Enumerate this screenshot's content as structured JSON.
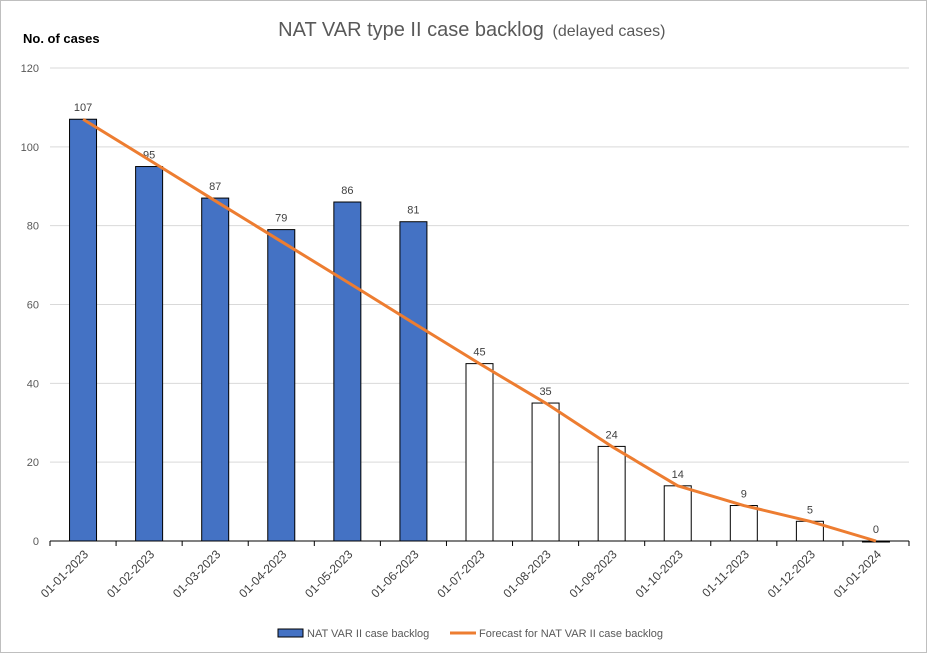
{
  "chart_data": {
    "type": "bar",
    "title": "NAT VAR type II case backlog",
    "subtitle": "(delayed cases)",
    "ylabel": "No. of cases",
    "xlabel": "",
    "ylim": [
      0,
      120
    ],
    "yticks": [
      0,
      20,
      40,
      60,
      80,
      100,
      120
    ],
    "grid": true,
    "legend_position": "bottom",
    "categories": [
      "01-01-2023",
      "01-02-2023",
      "01-03-2023",
      "01-04-2023",
      "01-05-2023",
      "01-06-2023",
      "01-07-2023",
      "01-08-2023",
      "01-09-2023",
      "01-10-2023",
      "01-11-2023",
      "01-12-2023",
      "01-01-2024"
    ],
    "series": [
      {
        "name": "NAT VAR II case backlog",
        "type": "bar",
        "color": "#4472C4",
        "values": [
          107,
          95,
          87,
          79,
          86,
          81,
          45,
          35,
          24,
          14,
          9,
          5,
          0
        ],
        "filled": [
          true,
          true,
          true,
          true,
          true,
          true,
          false,
          false,
          false,
          false,
          false,
          false,
          false
        ]
      },
      {
        "name": "Forecast for NAT VAR II case backlog",
        "type": "line",
        "color": "#ED7D31",
        "values": [
          107,
          96.7,
          86.3,
          76,
          65.7,
          55.3,
          45,
          35,
          24,
          14,
          9,
          5,
          0
        ]
      }
    ]
  }
}
